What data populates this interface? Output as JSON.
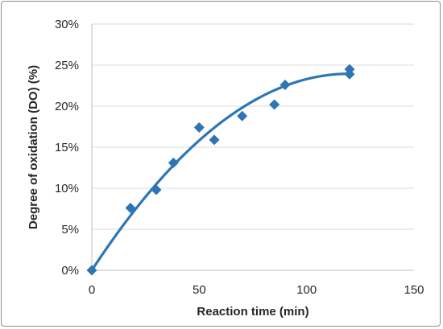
{
  "chart_data": {
    "type": "scatter",
    "xlabel": "Reaction time (min)",
    "ylabel": "Degree of oxidation (DO) (%)",
    "xlim": [
      0,
      150
    ],
    "ylim": [
      0,
      30
    ],
    "x_ticks": [
      "0",
      "50",
      "100",
      "150"
    ],
    "y_ticks": [
      "0%",
      "5%",
      "10%",
      "15%",
      "20%",
      "25%",
      "30%"
    ],
    "grid": "horizontal",
    "legend": "none",
    "marker_color": "#2e75b6",
    "trendline_color": "#2e75b6",
    "series": [
      {
        "marker": "diamond",
        "points": [
          [
            0,
            0.0
          ],
          [
            18,
            7.6
          ],
          [
            30,
            9.8
          ],
          [
            38,
            13.1
          ],
          [
            50,
            17.4
          ],
          [
            57,
            15.9
          ],
          [
            70,
            18.8
          ],
          [
            85,
            20.2
          ],
          [
            90,
            22.6
          ],
          [
            120,
            24.5
          ],
          [
            120,
            23.9
          ]
        ]
      }
    ],
    "trendline": {
      "type": "polynomial",
      "x_range": [
        0,
        120
      ],
      "coefficients": [
        0,
        0.4,
        -0.00167
      ]
    }
  }
}
